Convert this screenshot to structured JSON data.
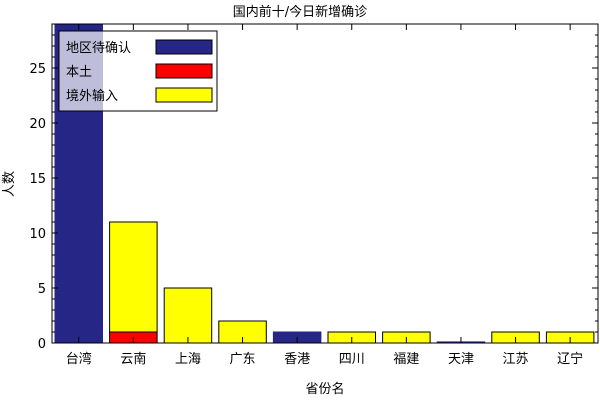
{
  "chart_data": {
    "type": "bar",
    "stacked": true,
    "title": "国内前十/今日新增确诊",
    "xlabel": "省份名",
    "ylabel": "人数",
    "ylim": [
      0,
      29
    ],
    "yticks": [
      0,
      5,
      10,
      15,
      20,
      25
    ],
    "categories": [
      "台湾",
      "云南",
      "上海",
      "广东",
      "香港",
      "四川",
      "福建",
      "天津",
      "江苏",
      "辽宁"
    ],
    "series": [
      {
        "name": "地区待确认",
        "color": "#262686",
        "values": [
          29,
          0,
          0,
          0,
          1,
          0,
          0,
          0.1,
          0,
          0
        ]
      },
      {
        "name": "本土",
        "color": "#ff0000",
        "values": [
          0,
          1,
          0,
          0,
          0,
          0,
          0,
          0,
          0,
          0
        ]
      },
      {
        "name": "境外输入",
        "color": "#ffff00",
        "values": [
          0,
          10,
          5,
          2,
          0,
          1,
          1,
          0,
          1,
          1
        ]
      }
    ],
    "legend_position": "top-left",
    "grid": false
  }
}
